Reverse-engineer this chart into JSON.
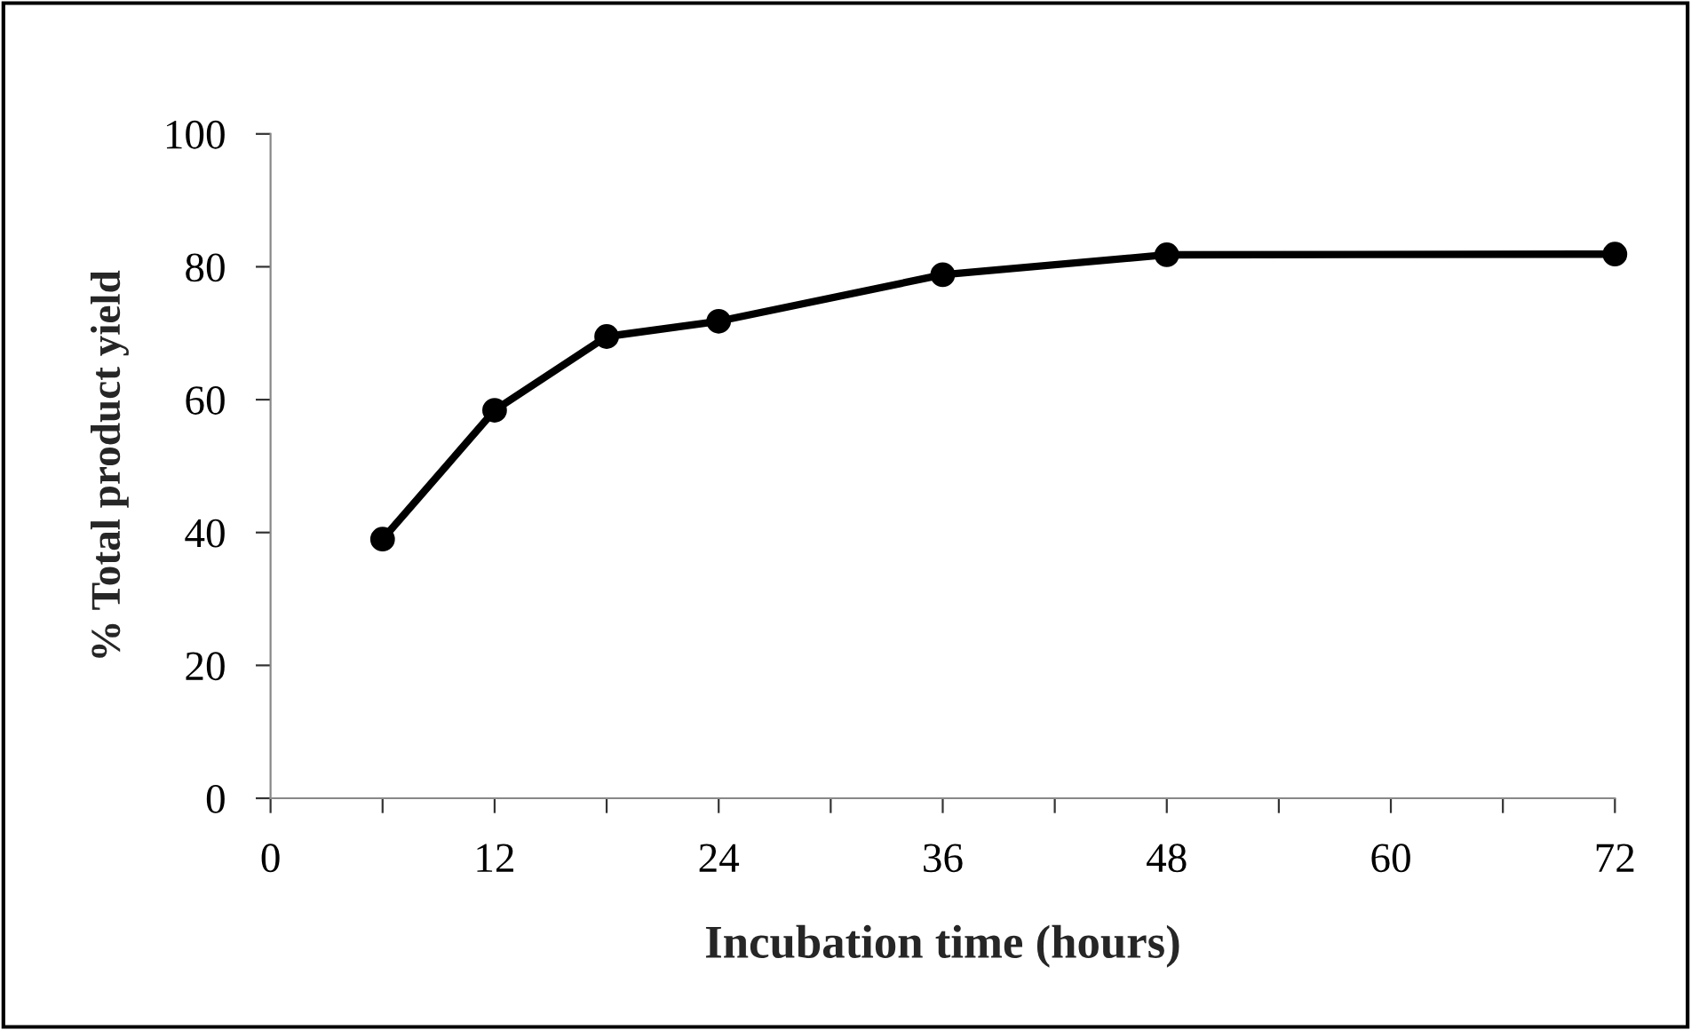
{
  "chart_data": {
    "type": "line",
    "xlabel": "Incubation time (hours)",
    "ylabel": "% Total product yield",
    "x": [
      6,
      12,
      18,
      24,
      36,
      48,
      72
    ],
    "series": [
      {
        "color": "#000000",
        "values": [
          39.0,
          58.4,
          69.5,
          71.8,
          78.8,
          81.8,
          81.9
        ]
      }
    ],
    "xlim": [
      0,
      72
    ],
    "ylim": [
      0,
      100
    ],
    "xticks": [
      0,
      {
        "value": 6,
        "label": null
      },
      12,
      {
        "value": 18,
        "label": null
      },
      24,
      {
        "value": 30,
        "label": null
      },
      36,
      {
        "value": 42,
        "label": null
      },
      48,
      {
        "value": 54,
        "label": null
      },
      60,
      {
        "value": 66,
        "label": null
      },
      72
    ],
    "yticks": [
      0,
      20,
      40,
      60,
      80,
      100
    ],
    "marker": "circle",
    "line_style": "solid",
    "grid": false
  }
}
